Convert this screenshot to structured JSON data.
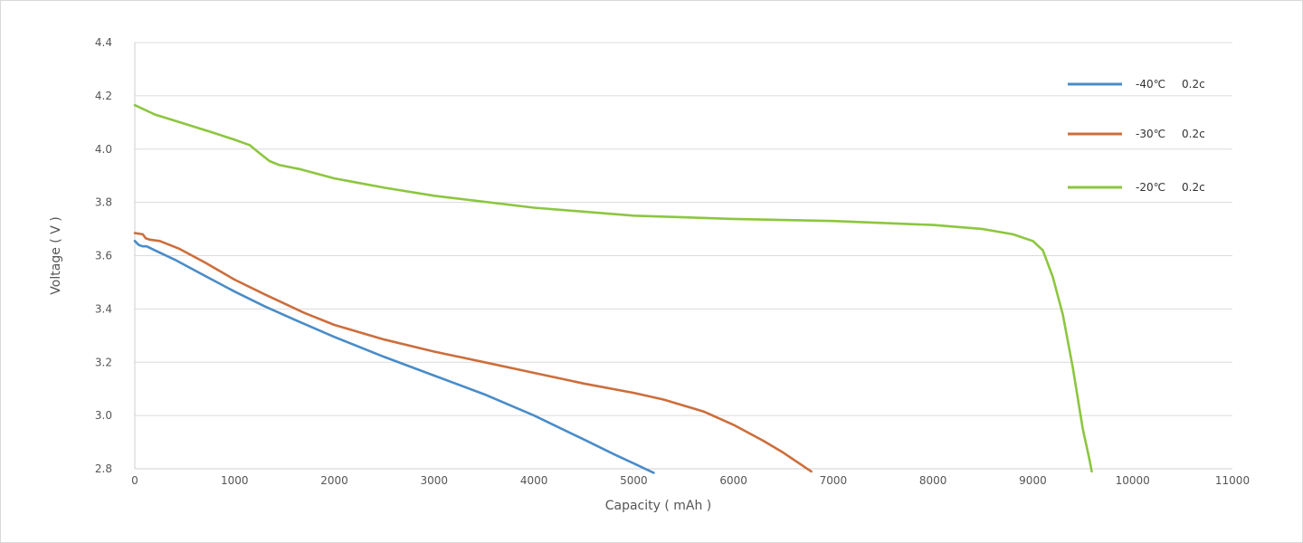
{
  "chart_data": {
    "type": "line",
    "title": "",
    "xlabel": "Capacity ( mAh )",
    "ylabel": "Voltage ( V )",
    "xlim": [
      0,
      11000
    ],
    "ylim": [
      2.8,
      4.4
    ],
    "x_ticks": [
      "0",
      "1000",
      "2000",
      "3000",
      "4000",
      "5000",
      "6000",
      "7000",
      "8000",
      "9000",
      "10000",
      "11000"
    ],
    "y_ticks": [
      "2.8",
      "3.0",
      "3.2",
      "3.4",
      "3.6",
      "3.8",
      "4.0",
      "4.2",
      "4.4"
    ],
    "grid": "horizontal",
    "legend_position": "top-right",
    "series": [
      {
        "name": "-40℃",
        "rate": "0.2c",
        "color": "#4a8cc8",
        "x": [
          0,
          40,
          80,
          120,
          200,
          400,
          700,
          1000,
          1300,
          1600,
          2000,
          2500,
          3000,
          3500,
          4000,
          4500,
          4800,
          5000,
          5200
        ],
        "y": [
          3.655,
          3.64,
          3.635,
          3.635,
          3.62,
          3.585,
          3.525,
          3.465,
          3.41,
          3.36,
          3.295,
          3.22,
          3.15,
          3.08,
          3.0,
          2.91,
          2.855,
          2.82,
          2.785
        ]
      },
      {
        "name": "-30℃",
        "rate": "0.2c",
        "color": "#cc6e3c",
        "x": [
          0,
          80,
          110,
          150,
          250,
          450,
          700,
          1000,
          1300,
          1700,
          2000,
          2500,
          3000,
          3500,
          4000,
          4500,
          5000,
          5300,
          5700,
          6000,
          6300,
          6500,
          6700,
          6780
        ],
        "y": [
          3.685,
          3.68,
          3.665,
          3.66,
          3.655,
          3.625,
          3.575,
          3.51,
          3.455,
          3.385,
          3.34,
          3.285,
          3.24,
          3.2,
          3.16,
          3.12,
          3.085,
          3.06,
          3.015,
          2.965,
          2.905,
          2.86,
          2.81,
          2.79
        ]
      },
      {
        "name": "-20℃",
        "rate": "0.2c",
        "color": "#8cc63f",
        "x": [
          0,
          200,
          500,
          800,
          1000,
          1150,
          1250,
          1350,
          1450,
          1650,
          2000,
          2500,
          3000,
          4000,
          5000,
          6000,
          7000,
          8000,
          8500,
          8800,
          9000,
          9100,
          9200,
          9300,
          9400,
          9500,
          9570,
          9590
        ],
        "y": [
          4.165,
          4.13,
          4.095,
          4.06,
          4.035,
          4.015,
          3.985,
          3.955,
          3.94,
          3.925,
          3.89,
          3.855,
          3.825,
          3.78,
          3.75,
          3.738,
          3.73,
          3.715,
          3.7,
          3.68,
          3.655,
          3.62,
          3.52,
          3.38,
          3.18,
          2.95,
          2.83,
          2.79
        ]
      }
    ]
  }
}
